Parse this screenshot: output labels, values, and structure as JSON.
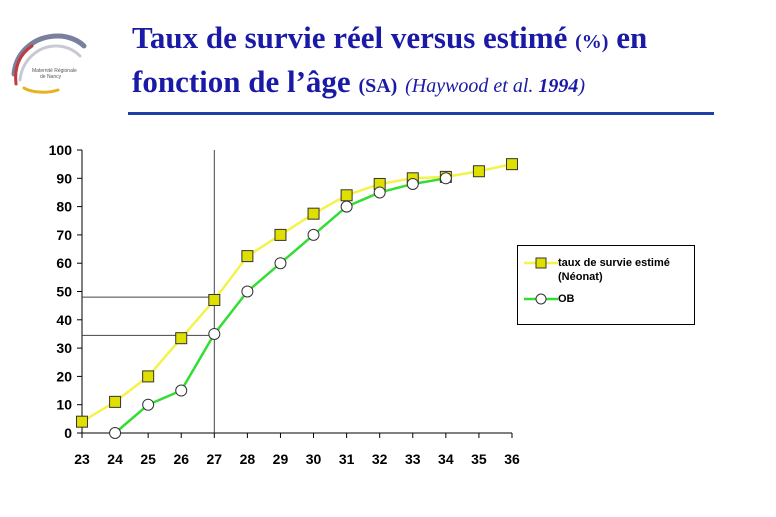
{
  "header": {
    "title_line1_main": "Taux de survie réel versus estimé",
    "title_line1_unit": "(%)",
    "title_line1_end": "en",
    "title_line2_main": "fonction de l’âge",
    "title_line2_unit": "(SA)",
    "citation_author": "(Haywood et al.",
    "citation_year": "1994",
    "citation_close": ")"
  },
  "logo": {
    "text_line1": "Maternité Régionale",
    "text_line2": "de Nancy"
  },
  "colors": {
    "title": "#1a1aa6",
    "series_estimated": "#f5f24a",
    "series_estimated_marker": "#e0e000",
    "series_ob": "#33dd33"
  },
  "chart_data": {
    "type": "line",
    "x": [
      23,
      24,
      25,
      26,
      27,
      28,
      29,
      30,
      31,
      32,
      33,
      34,
      35,
      36
    ],
    "x_tick_labels": [
      "23",
      "24",
      "25",
      "26",
      "27",
      "28",
      "29",
      "30",
      "31",
      "32",
      "33",
      "34",
      "35",
      "36"
    ],
    "y_tick_labels": [
      "0",
      "10",
      "20",
      "30",
      "40",
      "50",
      "60",
      "70",
      "80",
      "90",
      "100"
    ],
    "ylim": [
      0,
      100
    ],
    "xlim": [
      23,
      36
    ],
    "grid": false,
    "legend_position": "right",
    "series": [
      {
        "name": "taux de survie estimé (Néonat)",
        "legend_line1": "taux de survie estimé",
        "legend_line2": "(Néonat)",
        "marker": "square",
        "x": [
          23,
          24,
          25,
          26,
          27,
          28,
          29,
          30,
          31,
          32,
          33,
          34,
          35,
          36
        ],
        "values": [
          4,
          11,
          20,
          33.5,
          47,
          62.5,
          70,
          77.5,
          84,
          88,
          90,
          90.5,
          92.5,
          95
        ]
      },
      {
        "name": "OB",
        "legend_line1": "OB",
        "marker": "circle",
        "x": [
          24,
          25,
          26,
          27,
          28,
          29,
          30,
          31,
          32,
          33,
          34
        ],
        "values": [
          0,
          10,
          15,
          35,
          50,
          60,
          70,
          80,
          85,
          88,
          90
        ]
      }
    ],
    "reference_lines": [
      {
        "x": 27,
        "y": 48
      },
      {
        "x": 27,
        "y": 34.5
      }
    ]
  }
}
